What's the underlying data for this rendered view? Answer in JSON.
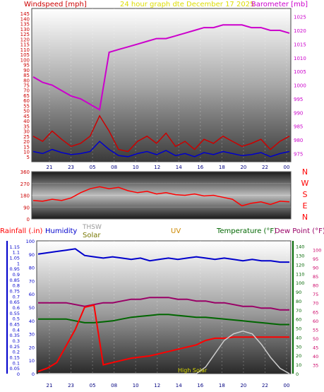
{
  "header": {
    "windspeed_label": "Windspeed [mph]",
    "graph_date_label": "24 hour graph dte   December 17 2025",
    "barometer_label": "Barometer [mb]"
  },
  "colors": {
    "windspeed": "#cc0000",
    "barometer": "#cc00cc",
    "graph_date": "#dddd00",
    "wind_dir": "#ff0000",
    "rainfall": "#ff0000",
    "humidity": "#0000cc",
    "thsw": "#999999",
    "solar": "#777700",
    "uv": "#cc8800",
    "temperature": "#006600",
    "dew_point": "#990066",
    "axis_blue": "#0000cc",
    "axis_green": "#006600",
    "axis_pink": "#cc0066"
  },
  "chart_data": [
    {
      "type": "line",
      "name": "wind-baro",
      "x_ticks": [
        "21",
        "23",
        "05",
        "08",
        "10",
        "12",
        "14",
        "16",
        "18",
        "20",
        "22",
        "00"
      ],
      "y_left_ticks": [
        5,
        10,
        15,
        20,
        25,
        30,
        35,
        40,
        45,
        50,
        55,
        60,
        65,
        70,
        75,
        80,
        85,
        90,
        95,
        100,
        105,
        110,
        115,
        120,
        125,
        130,
        135,
        140,
        145
      ],
      "y_right_ticks": [
        975,
        980,
        985,
        990,
        995,
        1000,
        1005,
        1010,
        1015,
        1020,
        1025
      ],
      "ylim_left": [
        0,
        150
      ],
      "ylim_right": [
        972,
        1028
      ],
      "series": [
        {
          "name": "Barometer",
          "axis": "right",
          "values": [
            1003,
            1001,
            1000,
            998,
            996,
            995,
            993,
            991,
            1012,
            1013,
            1014,
            1015,
            1016,
            1017,
            1017,
            1018,
            1019,
            1020,
            1021,
            1021,
            1022,
            1022,
            1022,
            1021,
            1021,
            1020,
            1020,
            1019
          ]
        },
        {
          "name": "Windspeed gust",
          "axis": "left",
          "values": [
            25,
            20,
            30,
            22,
            15,
            18,
            25,
            45,
            30,
            12,
            10,
            20,
            25,
            18,
            28,
            15,
            20,
            12,
            22,
            18,
            25,
            20,
            15,
            18,
            22,
            12,
            20,
            25
          ]
        },
        {
          "name": "Windspeed avg",
          "axis": "left",
          "values": [
            10,
            8,
            12,
            9,
            7,
            8,
            10,
            20,
            12,
            6,
            5,
            8,
            10,
            7,
            11,
            6,
            8,
            5,
            9,
            7,
            10,
            8,
            6,
            7,
            9,
            5,
            8,
            10
          ]
        }
      ]
    },
    {
      "type": "line",
      "name": "wind-direction",
      "x_ticks": [],
      "y_ticks": [
        0,
        90,
        180,
        270,
        360
      ],
      "dir_labels": [
        "N",
        "W",
        "S",
        "E",
        "N"
      ],
      "ylim": [
        0,
        360
      ],
      "series": [
        {
          "name": "Wind direction",
          "values": [
            140,
            135,
            150,
            140,
            160,
            200,
            230,
            245,
            230,
            240,
            215,
            200,
            210,
            190,
            200,
            185,
            180,
            190,
            175,
            180,
            165,
            150,
            100,
            120,
            130,
            110,
            135,
            130
          ]
        }
      ]
    },
    {
      "type": "line",
      "name": "multi",
      "legend": {
        "rainfall": "Rainfall (.in)",
        "humidity": "Humidity",
        "thsw": "THSW",
        "solar": "Solar",
        "uv": "UV",
        "temperature": "Temperature (°F)",
        "dew_point": "Dew Point (°F)",
        "high_solar": "High Solar"
      },
      "x_ticks": [
        "21",
        "23",
        "05",
        "08",
        "10",
        "12",
        "14",
        "16",
        "18",
        "20",
        "22",
        "00"
      ],
      "rain_ticks": [
        "0",
        "0.05",
        "0.1",
        "0.15",
        "0.2",
        "0.25",
        "0.3",
        "0.35",
        "0.4",
        "0.45",
        "0.5",
        "0.55",
        "0.6",
        "0.65",
        "0.7",
        "0.75",
        "0.8",
        "0.85",
        "0.9",
        "0.95",
        "1",
        "1.05",
        "1.1",
        "1.15"
      ],
      "humidity_ticks": [
        "0",
        "10",
        "20",
        "30",
        "40",
        "50",
        "60",
        "70",
        "80",
        "90",
        "100"
      ],
      "temp_ticks": [
        "0",
        "10",
        "20",
        "30",
        "40",
        "50",
        "60",
        "70",
        "80",
        "90",
        "100",
        "110",
        "120",
        "130",
        "140"
      ],
      "dew_ticks": [
        "35",
        "40",
        "45",
        "50",
        "55",
        "60",
        "65",
        "70",
        "75",
        "80",
        "85",
        "90",
        "95",
        "100"
      ],
      "series": [
        {
          "name": "Humidity",
          "values": [
            90,
            91,
            92,
            93,
            94,
            89,
            88,
            87,
            88,
            87,
            86,
            87,
            85,
            86,
            87,
            86,
            87,
            88,
            87,
            86,
            87,
            86,
            85,
            86,
            85,
            85,
            84,
            84
          ]
        },
        {
          "name": "Temperature",
          "values": [
            60,
            60,
            60,
            60,
            58,
            56,
            56,
            57,
            58,
            60,
            62,
            63,
            64,
            65,
            65,
            64,
            63,
            62,
            62,
            61,
            60,
            59,
            58,
            57,
            56,
            55,
            54,
            54
          ]
        },
        {
          "name": "Dew Point",
          "values": [
            70,
            70,
            70,
            70,
            69,
            68,
            69,
            70,
            70,
            71,
            72,
            72,
            73,
            73,
            73,
            72,
            72,
            71,
            71,
            70,
            70,
            69,
            68,
            68,
            67,
            67,
            66,
            66
          ]
        },
        {
          "name": "Rainfall",
          "values": [
            0.02,
            0.05,
            0.1,
            0.25,
            0.4,
            0.6,
            0.62,
            0.08,
            0.1,
            0.12,
            0.14,
            0.15,
            0.16,
            0.18,
            0.2,
            0.22,
            0.24,
            0.26,
            0.3,
            0.32,
            0.32,
            0.33,
            0.33,
            0.33,
            0.33,
            0.33,
            0.33,
            0.33
          ]
        },
        {
          "name": "Solar",
          "values": [
            0,
            0,
            0,
            0,
            0,
            0,
            0,
            0,
            0,
            0,
            0,
            0,
            0,
            0,
            0,
            0,
            0,
            0,
            5,
            15,
            25,
            30,
            32,
            30,
            22,
            12,
            4,
            0
          ]
        }
      ]
    }
  ]
}
